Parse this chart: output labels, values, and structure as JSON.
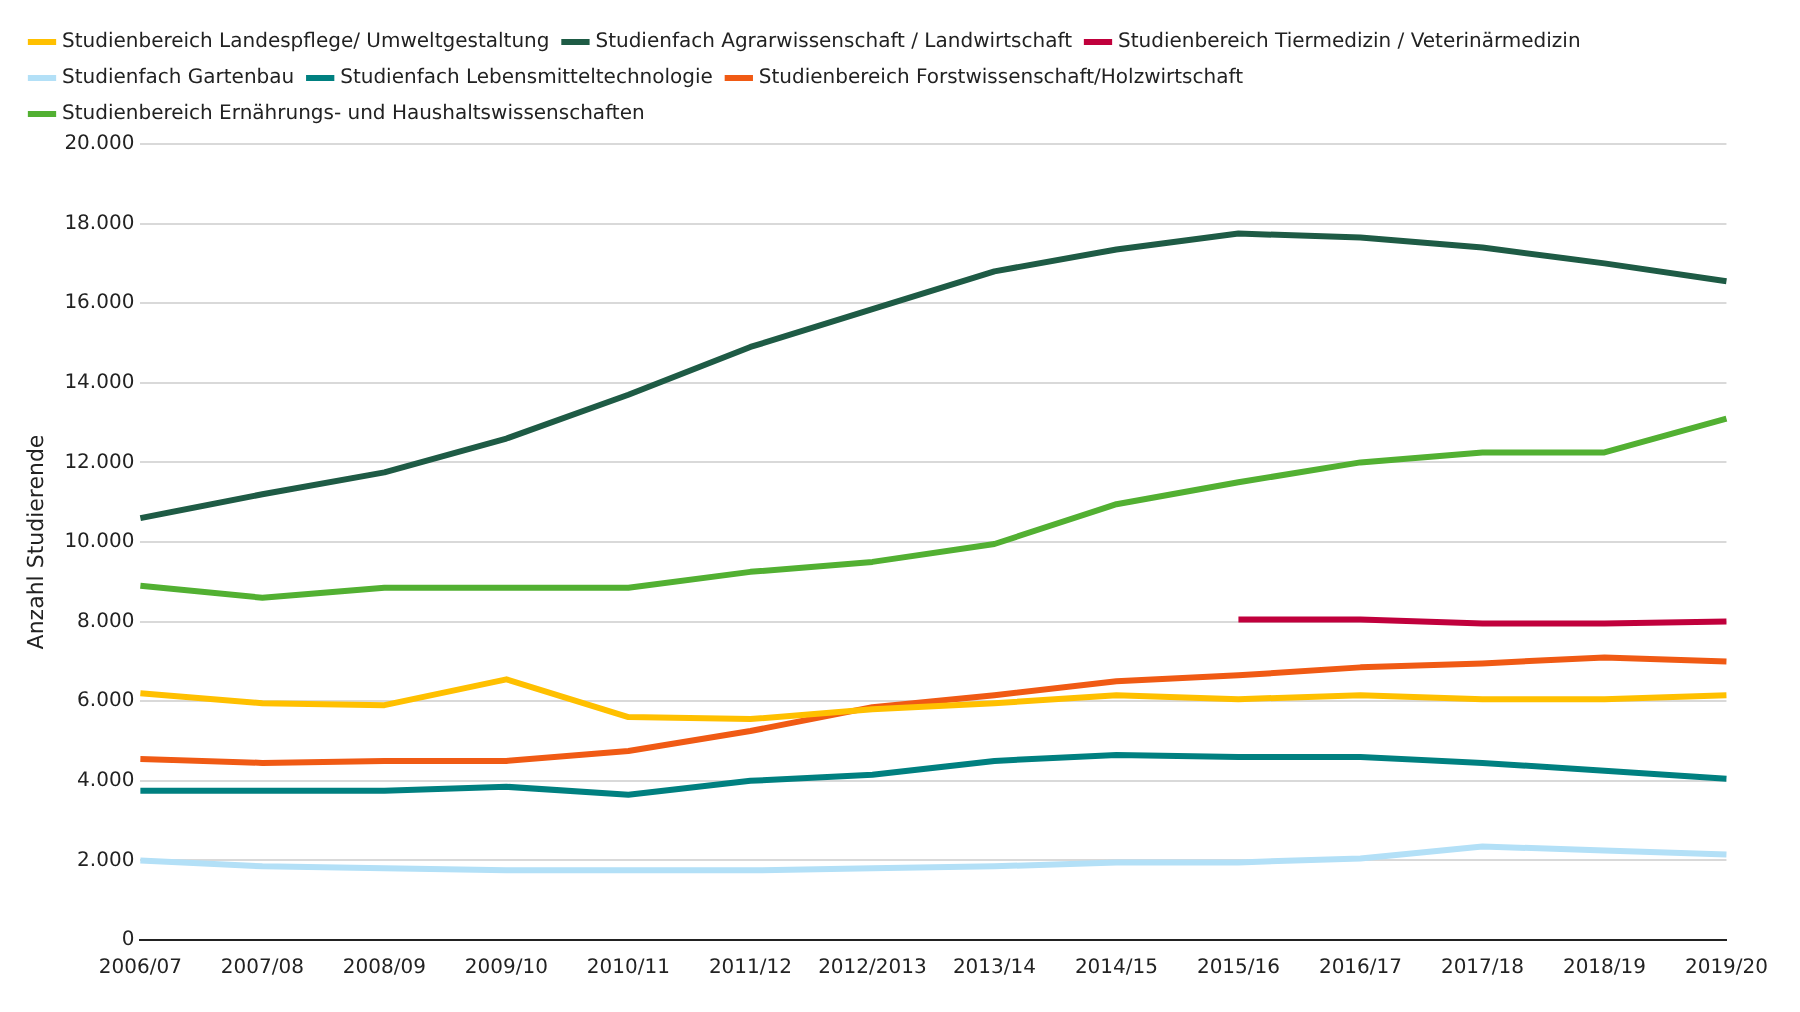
{
  "chart_data": {
    "type": "line",
    "ylabel": "Anzahl Studierende",
    "categories": [
      "2006/07",
      "2007/08",
      "2008/09",
      "2009/10",
      "2010/11",
      "2011/12",
      "2012/2013",
      "2013/14",
      "2014/15",
      "2015/16",
      "2016/17",
      "2017/18",
      "2018/19",
      "2019/20"
    ],
    "series": [
      {
        "name": "Studienbereich Landespflege/ Umweltgestaltung",
        "color": "#ffc000",
        "values": [
          6200,
          5950,
          5900,
          6550,
          5600,
          5550,
          5800,
          5950,
          6150,
          6050,
          6150,
          6050,
          6050,
          6150
        ]
      },
      {
        "name": "Studienfach Agrarwissenschaft / Landwirtschaft",
        "color": "#1e5b45",
        "values": [
          10600,
          11200,
          11750,
          12600,
          13700,
          14900,
          15850,
          16800,
          17350,
          17750,
          17650,
          17400,
          17000,
          16550
        ]
      },
      {
        "name": "Studienbereich Tiermedizin / Veterinärmedizin",
        "color": "#c0003c",
        "values": [
          null,
          null,
          null,
          null,
          null,
          null,
          null,
          null,
          null,
          8050,
          8050,
          7950,
          7950,
          8000
        ]
      },
      {
        "name": "Studienfach Gartenbau",
        "color": "#b3e0f7",
        "values": [
          2000,
          1850,
          1800,
          1750,
          1750,
          1750,
          1800,
          1850,
          1950,
          1950,
          2050,
          2350,
          2250,
          2150
        ]
      },
      {
        "name": "Studienfach Lebensmitteltechnologie",
        "color": "#008080",
        "values": [
          3750,
          3750,
          3750,
          3850,
          3650,
          4000,
          4150,
          4500,
          4650,
          4600,
          4600,
          4450,
          4250,
          4050
        ]
      },
      {
        "name": "Studienbereich Forstwissenschaft/Holzwirtschaft",
        "color": "#f05a14",
        "values": [
          4550,
          4450,
          4500,
          4500,
          4750,
          5250,
          5850,
          6150,
          6500,
          6650,
          6850,
          6950,
          7100,
          7000
        ]
      },
      {
        "name": "Studienbereich Ernährungs- und Haushaltswissenschaften",
        "color": "#52b032",
        "values": [
          8900,
          8600,
          8850,
          8850,
          8850,
          9250,
          9500,
          9950,
          10950,
          11500,
          12000,
          12250,
          12250,
          13100
        ]
      }
    ],
    "ylim": [
      0,
      20000
    ],
    "yticks": [
      0,
      {
        "value": 2000,
        "label": "2.000"
      },
      {
        "value": 4000,
        "label": "4.000"
      },
      {
        "value": 6000,
        "label": "6.000"
      },
      {
        "value": 8000,
        "label": "8.000"
      },
      {
        "value": 10000,
        "label": "10.000"
      },
      {
        "value": 12000,
        "label": "12.000"
      },
      {
        "value": 14000,
        "label": "14.000"
      },
      {
        "value": 16000,
        "label": "16.000"
      },
      {
        "value": 18000,
        "label": "18.000"
      },
      {
        "value": 20000,
        "label": "20.000"
      }
    ],
    "grid": "y",
    "legend": "top",
    "marker": "none",
    "line_style": "solid"
  }
}
